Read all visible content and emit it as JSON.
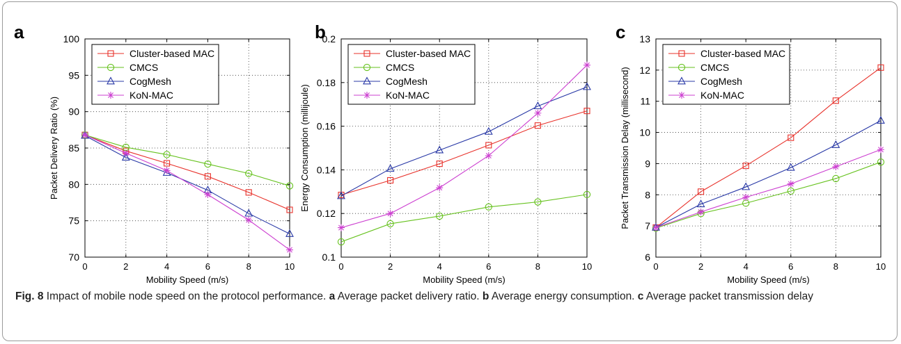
{
  "caption": {
    "fig_label": "Fig. 8",
    "text": " Impact of mobile node speed on the protocol performance. ",
    "parts": [
      {
        "label": "a",
        "text": " Average packet delivery ratio. "
      },
      {
        "label": "b",
        "text": " Average energy consumption. "
      },
      {
        "label": "c",
        "text": " Average packet transmission delay"
      }
    ]
  },
  "colors": {
    "Cluster-based MAC": "#e8312a",
    "CMCS": "#66c21e",
    "CogMesh": "#2838a6",
    "KoN-MAC": "#cc3fd0"
  },
  "chart_data": [
    {
      "type": "line",
      "panel": "a",
      "xlabel": "Mobility Speed (m/s)",
      "ylabel": "Packet Delivery Ratio (%)",
      "x": [
        0,
        2,
        4,
        6,
        8,
        10
      ],
      "xlim": [
        0,
        10
      ],
      "ylim": [
        70,
        100
      ],
      "xticks": [
        0,
        2,
        4,
        6,
        8,
        10
      ],
      "yticks": [
        70,
        75,
        80,
        85,
        90,
        95,
        100
      ],
      "grid": true,
      "legend": "top-left",
      "series": [
        {
          "name": "Cluster-based MAC",
          "marker": "square",
          "values": [
            86.8,
            84.6,
            82.9,
            81.1,
            78.9,
            76.5
          ]
        },
        {
          "name": "CMCS",
          "marker": "circle",
          "values": [
            86.8,
            85.1,
            84.1,
            82.8,
            81.5,
            79.8
          ]
        },
        {
          "name": "CogMesh",
          "marker": "triangle",
          "values": [
            86.7,
            83.7,
            81.6,
            79.2,
            76.0,
            73.2
          ]
        },
        {
          "name": "KoN-MAC",
          "marker": "star",
          "values": [
            86.8,
            84.3,
            81.9,
            78.6,
            75.1,
            71.0
          ]
        }
      ]
    },
    {
      "type": "line",
      "panel": "b",
      "xlabel": "Mobility Speed (m/s)",
      "ylabel": "Energy Consumption (millijoule)",
      "x": [
        0,
        2,
        4,
        6,
        8,
        10
      ],
      "xlim": [
        0,
        10
      ],
      "ylim": [
        0.1,
        0.2
      ],
      "xticks": [
        0,
        2,
        4,
        6,
        8,
        10
      ],
      "yticks": [
        0.1,
        0.12,
        0.14,
        0.16,
        0.18,
        0.2
      ],
      "grid": true,
      "legend": "top-left",
      "series": [
        {
          "name": "Cluster-based MAC",
          "marker": "square",
          "values": [
            0.1285,
            0.1352,
            0.1428,
            0.1513,
            0.1603,
            0.167
          ]
        },
        {
          "name": "CMCS",
          "marker": "circle",
          "values": [
            0.107,
            0.1153,
            0.1188,
            0.123,
            0.1253,
            0.1287
          ]
        },
        {
          "name": "CogMesh",
          "marker": "triangle",
          "values": [
            0.128,
            0.1405,
            0.149,
            0.1575,
            0.1692,
            0.178
          ]
        },
        {
          "name": "KoN-MAC",
          "marker": "star",
          "values": [
            0.1135,
            0.12,
            0.1318,
            0.1465,
            0.166,
            0.188
          ]
        }
      ]
    },
    {
      "type": "line",
      "panel": "c",
      "xlabel": "Mobility Speed (m/s)",
      "ylabel": "Packet Transmission Delay (millisecond)",
      "x": [
        0,
        2,
        4,
        6,
        8,
        10
      ],
      "xlim": [
        0,
        10
      ],
      "ylim": [
        6,
        13
      ],
      "xticks": [
        0,
        2,
        4,
        6,
        8,
        10
      ],
      "yticks": [
        6,
        7,
        8,
        9,
        10,
        11,
        12,
        13
      ],
      "grid": true,
      "legend": "top-left",
      "series": [
        {
          "name": "Cluster-based MAC",
          "marker": "square",
          "values": [
            6.95,
            8.1,
            8.93,
            9.83,
            11.02,
            12.08
          ]
        },
        {
          "name": "CMCS",
          "marker": "circle",
          "values": [
            6.93,
            7.4,
            7.73,
            8.12,
            8.52,
            9.05
          ]
        },
        {
          "name": "CogMesh",
          "marker": "triangle",
          "values": [
            6.95,
            7.7,
            8.25,
            8.87,
            9.6,
            10.38
          ]
        },
        {
          "name": "KoN-MAC",
          "marker": "star",
          "values": [
            6.95,
            7.45,
            7.92,
            8.35,
            8.9,
            9.45
          ]
        }
      ]
    }
  ]
}
